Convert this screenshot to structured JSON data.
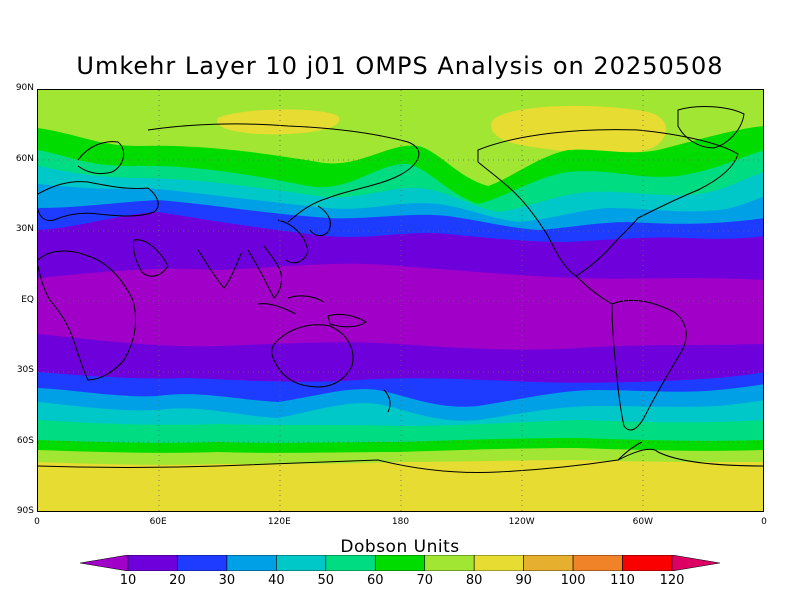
{
  "title": "Umkehr Layer 10 j01 OMPS Analysis on 20250508",
  "lat_ticks": [
    {
      "label": "90N",
      "lat": 90
    },
    {
      "label": "60N",
      "lat": 60
    },
    {
      "label": "30N",
      "lat": 30
    },
    {
      "label": "EQ",
      "lat": 0
    },
    {
      "label": "30S",
      "lat": -30
    },
    {
      "label": "60S",
      "lat": -60
    },
    {
      "label": "90S",
      "lat": -90
    }
  ],
  "lon_ticks": [
    {
      "label": "0",
      "lon": 0
    },
    {
      "label": "60E",
      "lon": 60
    },
    {
      "label": "120E",
      "lon": 120
    },
    {
      "label": "180",
      "lon": 180
    },
    {
      "label": "120W",
      "lon": 240
    },
    {
      "label": "60W",
      "lon": 300
    },
    {
      "label": "0",
      "lon": 360
    }
  ],
  "colorbar": {
    "title": "Dobson Units",
    "labels": [
      "10",
      "20",
      "30",
      "40",
      "50",
      "60",
      "70",
      "80",
      "90",
      "100",
      "110",
      "120"
    ],
    "colors": [
      "#a000c8",
      "#6e00dc",
      "#1e3cff",
      "#00a0e6",
      "#00c8c8",
      "#00dc82",
      "#00dc00",
      "#a0e632",
      "#e6dc32",
      "#e6af2d",
      "#f08228",
      "#fa0000",
      "#dc0064"
    ]
  },
  "map_data": {
    "projection": "cylindrical equidistant",
    "lon_range": [
      0,
      360
    ],
    "lat_range": [
      -90,
      90
    ],
    "units": "Dobson Units",
    "band_colors": {
      "purple": "#a000c8",
      "violet": "#6e00dc",
      "blue": "#1e3cff",
      "lightblue": "#00a0e6",
      "cyan": "#00c8c8",
      "teal": "#00dc82",
      "green": "#00dc00",
      "yellowgreen": "#a0e632",
      "yellow": "#e6dc32"
    }
  }
}
